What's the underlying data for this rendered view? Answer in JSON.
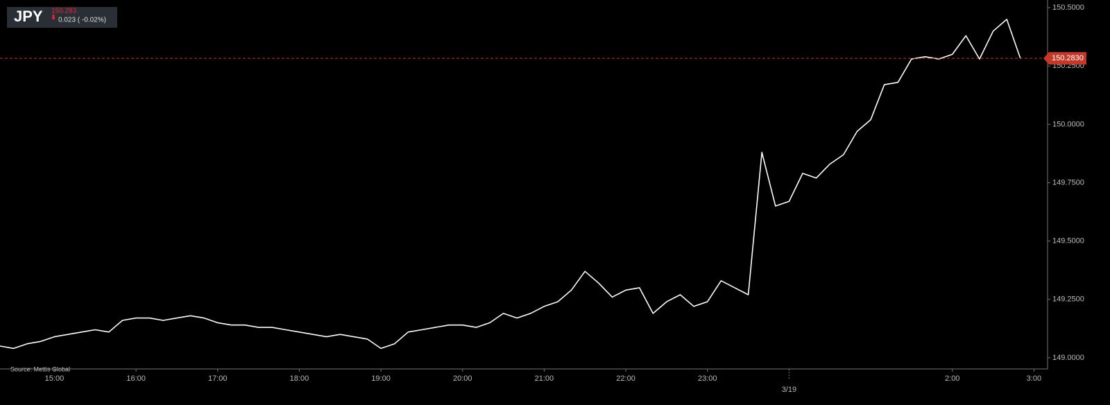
{
  "header": {
    "symbol": "JPY",
    "price": "150.283",
    "change": "0.023 ( -0.02%)"
  },
  "chart_data": {
    "type": "line",
    "source": "Source: Mettis Global",
    "x": [
      "14:20",
      "14:30",
      "14:40",
      "14:50",
      "15:00",
      "15:10",
      "15:20",
      "15:30",
      "15:40",
      "15:50",
      "16:00",
      "16:10",
      "16:20",
      "16:30",
      "16:40",
      "16:50",
      "17:00",
      "17:10",
      "17:20",
      "17:30",
      "17:40",
      "17:50",
      "18:00",
      "18:10",
      "18:20",
      "18:30",
      "18:40",
      "18:50",
      "19:00",
      "19:10",
      "19:20",
      "19:30",
      "19:40",
      "19:50",
      "20:00",
      "20:10",
      "20:20",
      "20:30",
      "20:40",
      "20:50",
      "21:00",
      "21:10",
      "21:20",
      "21:30",
      "21:40",
      "21:50",
      "22:00",
      "22:10",
      "22:20",
      "22:30",
      "22:40",
      "22:50",
      "23:00",
      "23:10",
      "23:20",
      "23:30",
      "23:40",
      "23:50",
      "0:00",
      "0:10",
      "0:20",
      "0:30",
      "0:40",
      "0:50",
      "1:00",
      "1:10",
      "1:20",
      "1:30",
      "1:40",
      "1:50",
      "2:00",
      "2:10",
      "2:20",
      "2:30",
      "2:40",
      "2:50"
    ],
    "series": [
      {
        "name": "JPY",
        "color": "#ffffff",
        "values": [
          149.05,
          149.04,
          149.06,
          149.07,
          149.09,
          149.1,
          149.11,
          149.12,
          149.11,
          149.16,
          149.17,
          149.17,
          149.16,
          149.17,
          149.18,
          149.17,
          149.15,
          149.14,
          149.14,
          149.13,
          149.13,
          149.12,
          149.11,
          149.1,
          149.09,
          149.1,
          149.09,
          149.08,
          149.04,
          149.06,
          149.11,
          149.12,
          149.13,
          149.14,
          149.14,
          149.13,
          149.15,
          149.19,
          149.17,
          149.19,
          149.22,
          149.24,
          149.29,
          149.37,
          149.32,
          149.26,
          149.29,
          149.3,
          149.19,
          149.24,
          149.27,
          149.22,
          149.24,
          149.33,
          149.3,
          149.27,
          149.88,
          149.65,
          149.67,
          149.79,
          149.77,
          149.83,
          149.87,
          149.97,
          150.02,
          150.17,
          150.18,
          150.28,
          150.29,
          150.28,
          150.3,
          150.38,
          150.28,
          150.4,
          150.45,
          150.283
        ]
      }
    ],
    "last_value": 150.283,
    "last_label": "150.2830",
    "last_color": "#c0392b",
    "xlim": [
      "14:20",
      "3:10"
    ],
    "xticks": [
      "15:00",
      "16:00",
      "17:00",
      "18:00",
      "19:00",
      "20:00",
      "21:00",
      "22:00",
      "23:00",
      {
        "value": "0:00",
        "label": "3/19"
      },
      "2:00",
      "3:00"
    ],
    "ylim": [
      148.952,
      150.533
    ],
    "yticks": [
      {
        "value": 149,
        "label": "149.0000"
      },
      {
        "value": 149.25,
        "label": "149.2500"
      },
      {
        "value": 149.5,
        "label": "149.5000"
      },
      {
        "value": 149.75,
        "label": "149.7500"
      },
      {
        "value": 150,
        "label": "150.0000"
      },
      {
        "value": 150.25,
        "label": "150.2500"
      },
      {
        "value": 150.5,
        "label": "150.5000"
      }
    ]
  }
}
